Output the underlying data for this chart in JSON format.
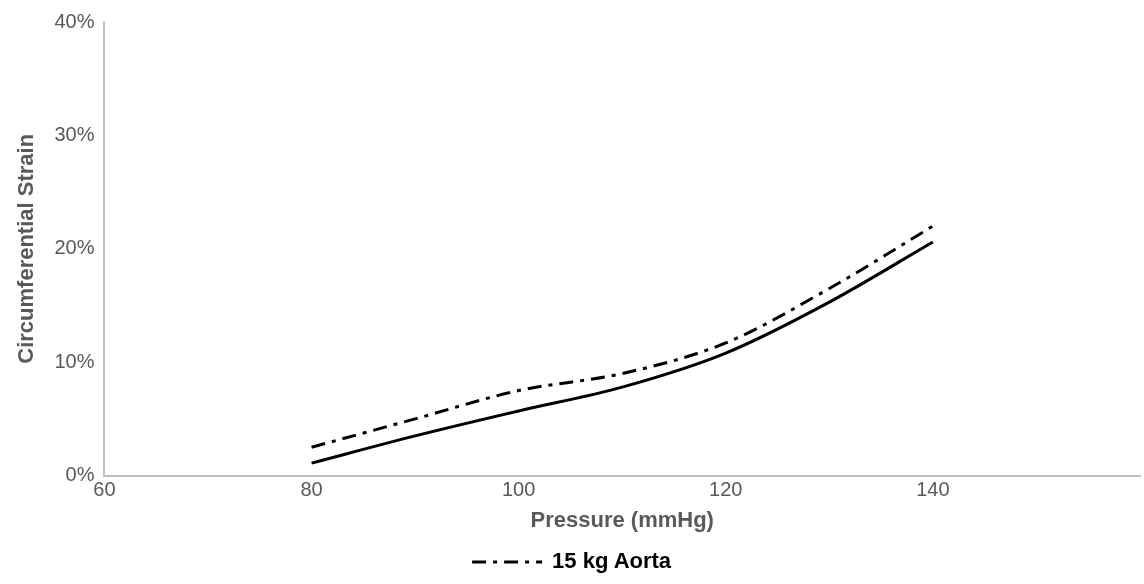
{
  "chart_data": {
    "type": "line",
    "xlabel": "Pressure (mmHg)",
    "ylabel": "Circumferential Strain",
    "xlim": [
      60,
      160
    ],
    "xticks": [
      60,
      80,
      100,
      120,
      140
    ],
    "ylim": [
      0,
      40
    ],
    "yticks": [
      {
        "value": 0,
        "label": "0%"
      },
      {
        "value": 10,
        "label": "10%"
      },
      {
        "value": 20,
        "label": "20%"
      },
      {
        "value": 30,
        "label": "30%"
      },
      {
        "value": 40,
        "label": "40%"
      }
    ],
    "x": [
      80,
      90,
      100,
      110,
      120,
      130,
      140
    ],
    "series": [
      {
        "name": "15 kg Aorta",
        "color": "#000000",
        "line_style": "dashed",
        "values": [
          2.5,
          5,
          7.5,
          9,
          11.7,
          16.5,
          22
        ]
      },
      {
        "color": "#000000",
        "line_style": "solid",
        "values": [
          1.1,
          3.5,
          5.7,
          7.8,
          10.8,
          15.3,
          20.6
        ]
      }
    ],
    "grid": false,
    "legend": "bottom",
    "marker": "none"
  }
}
